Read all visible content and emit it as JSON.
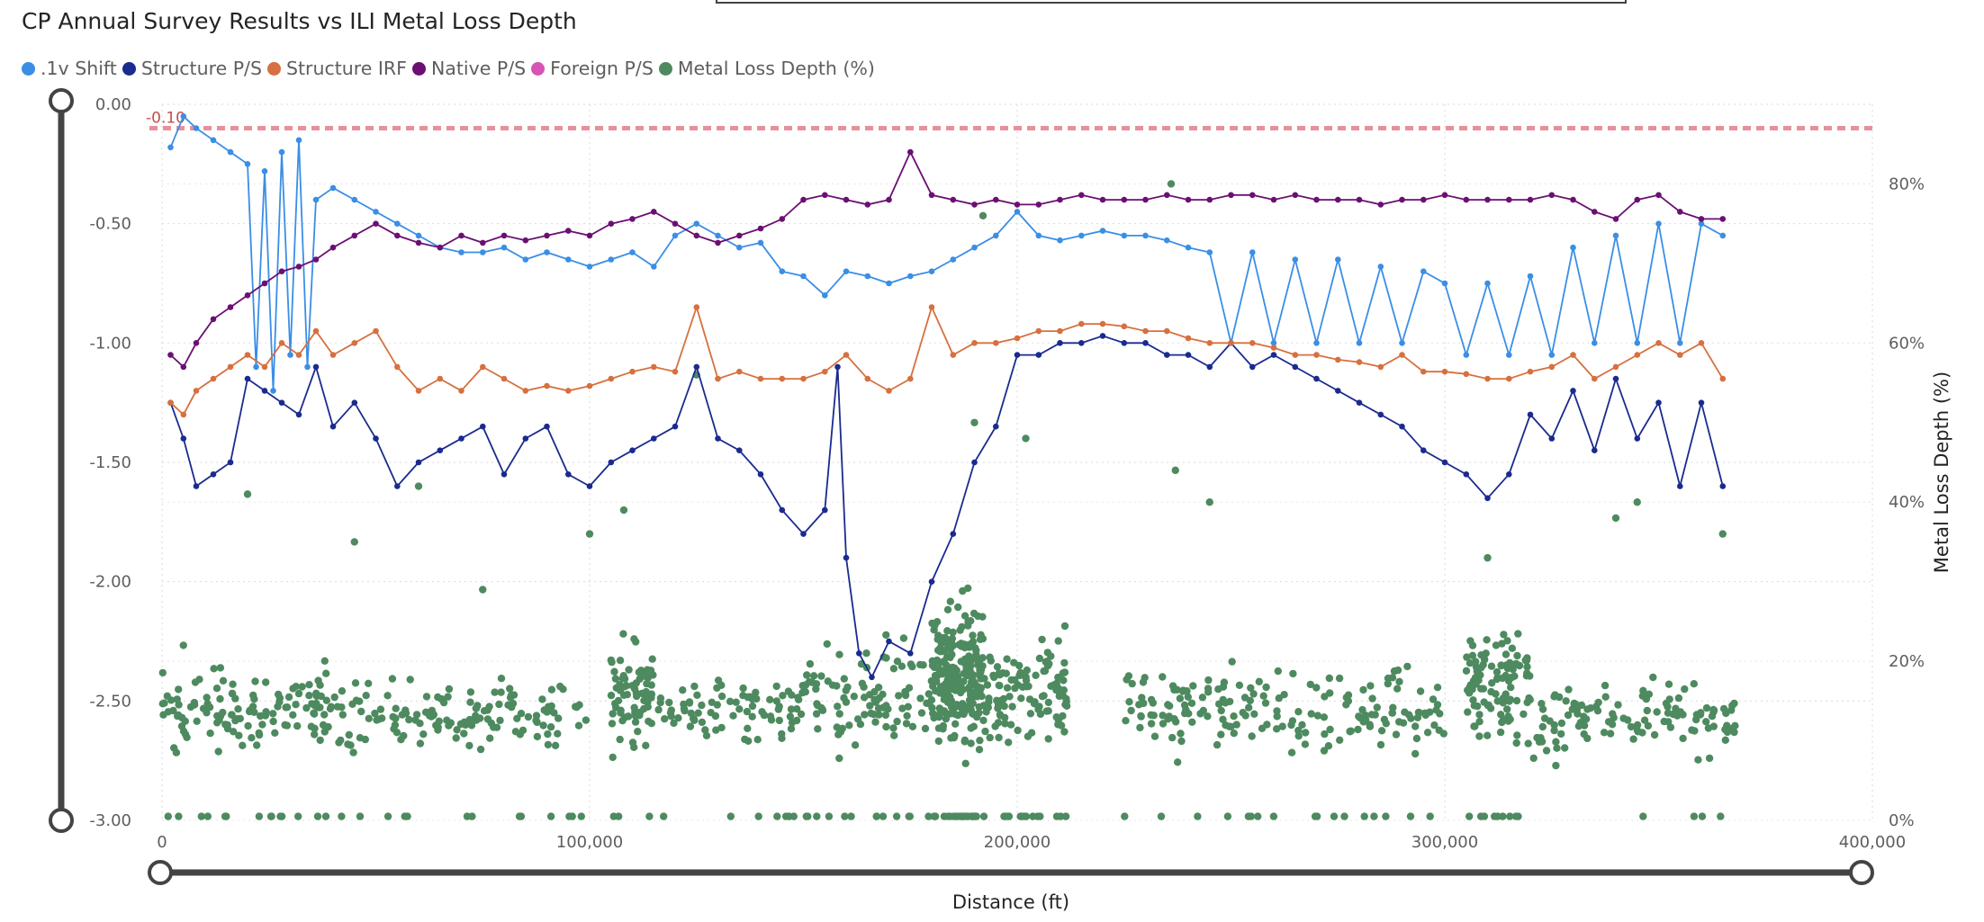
{
  "chart_data": {
    "type": "line",
    "title": "CP Annual Survey Results vs ILI Metal Loss Depth",
    "xlabel": "Distance (ft)",
    "ylabel": "",
    "y2label": "Metal Loss Depth (%)",
    "xlim": [
      0,
      400000
    ],
    "ylim": [
      -3.0,
      0.0
    ],
    "y2lim": [
      0,
      90
    ],
    "x_ticks": [
      "0",
      "100,000",
      "200,000",
      "300,000",
      "400,000"
    ],
    "y_ticks": [
      "0.00",
      "-0.50",
      "-1.00",
      "-1.50",
      "-2.00",
      "-2.50",
      "-3.00"
    ],
    "y2_ticks": [
      "0%",
      "20%",
      "40%",
      "60%",
      "80%"
    ],
    "reference_line": {
      "value": -0.1,
      "label": "-0.10",
      "color": "#e8909a"
    },
    "legend": [
      {
        "name": ".1v Shift",
        "color": "#3a8ee6"
      },
      {
        "name": "Structure P/S",
        "color": "#1a2a8f"
      },
      {
        "name": "Structure IRF",
        "color": "#d6703f"
      },
      {
        "name": "Native P/S",
        "color": "#6b0f73"
      },
      {
        "name": "Foreign P/S",
        "color": "#d654b4"
      },
      {
        "name": "Metal Loss Depth (%)",
        "color": "#4e8a5f"
      }
    ],
    "series": [
      {
        "name": ".1v Shift",
        "axis": "y",
        "color": "#3a8ee6",
        "x": [
          2000,
          5000,
          8000,
          12000,
          16000,
          20000,
          22000,
          24000,
          26000,
          28000,
          30000,
          32000,
          34000,
          36000,
          40000,
          45000,
          50000,
          55000,
          60000,
          65000,
          70000,
          75000,
          80000,
          85000,
          90000,
          95000,
          100000,
          105000,
          110000,
          115000,
          120000,
          125000,
          130000,
          135000,
          140000,
          145000,
          150000,
          155000,
          160000,
          165000,
          170000,
          175000,
          180000,
          185000,
          190000,
          195000,
          200000,
          205000,
          210000,
          215000,
          220000,
          225000,
          230000,
          235000,
          240000,
          245000,
          250000,
          255000,
          260000,
          265000,
          270000,
          275000,
          280000,
          285000,
          290000,
          295000,
          300000,
          305000,
          310000,
          315000,
          320000,
          325000,
          330000,
          335000,
          340000,
          345000,
          350000,
          355000,
          360000,
          365000
        ],
        "y": [
          -0.18,
          -0.05,
          -0.1,
          -0.15,
          -0.2,
          -0.25,
          -1.1,
          -0.28,
          -1.2,
          -0.2,
          -1.05,
          -0.15,
          -1.1,
          -0.4,
          -0.35,
          -0.4,
          -0.45,
          -0.5,
          -0.55,
          -0.6,
          -0.62,
          -0.62,
          -0.6,
          -0.65,
          -0.62,
          -0.65,
          -0.68,
          -0.65,
          -0.62,
          -0.68,
          -0.55,
          -0.5,
          -0.55,
          -0.6,
          -0.58,
          -0.7,
          -0.72,
          -0.8,
          -0.7,
          -0.72,
          -0.75,
          -0.72,
          -0.7,
          -0.65,
          -0.6,
          -0.55,
          -0.45,
          -0.55,
          -0.57,
          -0.55,
          -0.53,
          -0.55,
          -0.55,
          -0.57,
          -0.6,
          -0.62,
          -1.0,
          -0.62,
          -1.0,
          -0.65,
          -1.0,
          -0.65,
          -1.0,
          -0.68,
          -1.0,
          -0.7,
          -0.75,
          -1.05,
          -0.75,
          -1.05,
          -0.72,
          -1.05,
          -0.6,
          -1.0,
          -0.55,
          -1.0,
          -0.5,
          -1.0,
          -0.5,
          -0.55
        ]
      },
      {
        "name": "Structure P/S",
        "axis": "y",
        "color": "#1a2a8f",
        "x": [
          2000,
          5000,
          8000,
          12000,
          16000,
          20000,
          24000,
          28000,
          32000,
          36000,
          40000,
          45000,
          50000,
          55000,
          60000,
          65000,
          70000,
          75000,
          80000,
          85000,
          90000,
          95000,
          100000,
          105000,
          110000,
          115000,
          120000,
          125000,
          130000,
          135000,
          140000,
          145000,
          150000,
          155000,
          158000,
          160000,
          163000,
          166000,
          170000,
          175000,
          180000,
          185000,
          190000,
          195000,
          200000,
          205000,
          210000,
          215000,
          220000,
          225000,
          230000,
          235000,
          240000,
          245000,
          250000,
          255000,
          260000,
          265000,
          270000,
          275000,
          280000,
          285000,
          290000,
          295000,
          300000,
          305000,
          310000,
          315000,
          320000,
          325000,
          330000,
          335000,
          340000,
          345000,
          350000,
          355000,
          360000,
          365000
        ],
        "y": [
          -1.25,
          -1.4,
          -1.6,
          -1.55,
          -1.5,
          -1.15,
          -1.2,
          -1.25,
          -1.3,
          -1.1,
          -1.35,
          -1.25,
          -1.4,
          -1.6,
          -1.5,
          -1.45,
          -1.4,
          -1.35,
          -1.55,
          -1.4,
          -1.35,
          -1.55,
          -1.6,
          -1.5,
          -1.45,
          -1.4,
          -1.35,
          -1.1,
          -1.4,
          -1.45,
          -1.55,
          -1.7,
          -1.8,
          -1.7,
          -1.1,
          -1.9,
          -2.3,
          -2.4,
          -2.25,
          -2.3,
          -2.0,
          -1.8,
          -1.5,
          -1.35,
          -1.05,
          -1.05,
          -1.0,
          -1.0,
          -0.97,
          -1.0,
          -1.0,
          -1.05,
          -1.05,
          -1.1,
          -1.0,
          -1.1,
          -1.05,
          -1.1,
          -1.15,
          -1.2,
          -1.25,
          -1.3,
          -1.35,
          -1.45,
          -1.5,
          -1.55,
          -1.65,
          -1.55,
          -1.3,
          -1.4,
          -1.2,
          -1.45,
          -1.15,
          -1.4,
          -1.25,
          -1.6,
          -1.25,
          -1.6
        ]
      },
      {
        "name": "Structure IRF",
        "axis": "y",
        "color": "#d6703f",
        "x": [
          2000,
          5000,
          8000,
          12000,
          16000,
          20000,
          24000,
          28000,
          32000,
          36000,
          40000,
          45000,
          50000,
          55000,
          60000,
          65000,
          70000,
          75000,
          80000,
          85000,
          90000,
          95000,
          100000,
          105000,
          110000,
          115000,
          120000,
          125000,
          130000,
          135000,
          140000,
          145000,
          150000,
          155000,
          160000,
          165000,
          170000,
          175000,
          180000,
          185000,
          190000,
          195000,
          200000,
          205000,
          210000,
          215000,
          220000,
          225000,
          230000,
          235000,
          240000,
          245000,
          250000,
          255000,
          260000,
          265000,
          270000,
          275000,
          280000,
          285000,
          290000,
          295000,
          300000,
          305000,
          310000,
          315000,
          320000,
          325000,
          330000,
          335000,
          340000,
          345000,
          350000,
          355000,
          360000,
          365000
        ],
        "y": [
          -1.25,
          -1.3,
          -1.2,
          -1.15,
          -1.1,
          -1.05,
          -1.1,
          -1.0,
          -1.05,
          -0.95,
          -1.05,
          -1.0,
          -0.95,
          -1.1,
          -1.2,
          -1.15,
          -1.2,
          -1.1,
          -1.15,
          -1.2,
          -1.18,
          -1.2,
          -1.18,
          -1.15,
          -1.12,
          -1.1,
          -1.12,
          -0.85,
          -1.15,
          -1.12,
          -1.15,
          -1.15,
          -1.15,
          -1.12,
          -1.05,
          -1.15,
          -1.2,
          -1.15,
          -0.85,
          -1.05,
          -1.0,
          -1.0,
          -0.98,
          -0.95,
          -0.95,
          -0.92,
          -0.92,
          -0.93,
          -0.95,
          -0.95,
          -0.98,
          -1.0,
          -1.0,
          -1.0,
          -1.02,
          -1.05,
          -1.05,
          -1.07,
          -1.08,
          -1.1,
          -1.05,
          -1.12,
          -1.12,
          -1.13,
          -1.15,
          -1.15,
          -1.12,
          -1.1,
          -1.05,
          -1.15,
          -1.1,
          -1.05,
          -1.0,
          -1.05,
          -1.0,
          -1.15
        ]
      },
      {
        "name": "Native P/S",
        "axis": "y",
        "color": "#6b0f73",
        "x": [
          2000,
          5000,
          8000,
          12000,
          16000,
          20000,
          24000,
          28000,
          32000,
          36000,
          40000,
          45000,
          50000,
          55000,
          60000,
          65000,
          70000,
          75000,
          80000,
          85000,
          90000,
          95000,
          100000,
          105000,
          110000,
          115000,
          120000,
          125000,
          130000,
          135000,
          140000,
          145000,
          150000,
          155000,
          160000,
          165000,
          170000,
          175000,
          180000,
          185000,
          190000,
          195000,
          200000,
          205000,
          210000,
          215000,
          220000,
          225000,
          230000,
          235000,
          240000,
          245000,
          250000,
          255000,
          260000,
          265000,
          270000,
          275000,
          280000,
          285000,
          290000,
          295000,
          300000,
          305000,
          310000,
          315000,
          320000,
          325000,
          330000,
          335000,
          340000,
          345000,
          350000,
          355000,
          360000,
          365000
        ],
        "y": [
          -1.05,
          -1.1,
          -1.0,
          -0.9,
          -0.85,
          -0.8,
          -0.75,
          -0.7,
          -0.68,
          -0.65,
          -0.6,
          -0.55,
          -0.5,
          -0.55,
          -0.58,
          -0.6,
          -0.55,
          -0.58,
          -0.55,
          -0.57,
          -0.55,
          -0.53,
          -0.55,
          -0.5,
          -0.48,
          -0.45,
          -0.5,
          -0.55,
          -0.58,
          -0.55,
          -0.52,
          -0.48,
          -0.4,
          -0.38,
          -0.4,
          -0.42,
          -0.4,
          -0.2,
          -0.38,
          -0.4,
          -0.42,
          -0.4,
          -0.42,
          -0.42,
          -0.4,
          -0.38,
          -0.4,
          -0.4,
          -0.4,
          -0.38,
          -0.4,
          -0.4,
          -0.38,
          -0.38,
          -0.4,
          -0.38,
          -0.4,
          -0.4,
          -0.4,
          -0.42,
          -0.4,
          -0.4,
          -0.38,
          -0.4,
          -0.4,
          -0.4,
          -0.4,
          -0.38,
          -0.4,
          -0.45,
          -0.48,
          -0.4,
          -0.38,
          -0.45,
          -0.48,
          -0.48
        ]
      },
      {
        "name": "Foreign P/S",
        "axis": "y",
        "color": "#d654b4",
        "x": [],
        "y": []
      }
    ],
    "scatter": {
      "name": "Metal Loss Depth (%)",
      "axis": "y2",
      "color": "#4e8a5f",
      "clusters": [
        {
          "x_range": [
            0,
            40000
          ],
          "y_center": 14,
          "spread": 8,
          "count": 140
        },
        {
          "x_range": [
            40000,
            100000
          ],
          "y_center": 13,
          "spread": 7,
          "count": 150
        },
        {
          "x_range": [
            105000,
            115000
          ],
          "y_center": 16,
          "spread": 10,
          "count": 80
        },
        {
          "x_range": [
            115000,
            150000
          ],
          "y_center": 14,
          "spread": 7,
          "count": 90
        },
        {
          "x_range": [
            150000,
            180000
          ],
          "y_center": 15,
          "spread": 10,
          "count": 110
        },
        {
          "x_range": [
            180000,
            192000
          ],
          "y_center": 18,
          "spread": 14,
          "count": 260
        },
        {
          "x_range": [
            192000,
            212000
          ],
          "y_center": 16,
          "spread": 10,
          "count": 130
        },
        {
          "x_range": [
            225000,
            300000
          ],
          "y_center": 14,
          "spread": 8,
          "count": 200
        },
        {
          "x_range": [
            305000,
            320000
          ],
          "y_center": 17,
          "spread": 11,
          "count": 110
        },
        {
          "x_range": [
            320000,
            368000
          ],
          "y_center": 13,
          "spread": 7,
          "count": 120
        }
      ],
      "outliers_x": [
        5000,
        20000,
        45000,
        60000,
        75000,
        100000,
        108000,
        125000,
        190000,
        192000,
        202000,
        236000,
        237000,
        245000,
        310000,
        312000,
        340000,
        345000,
        365000
      ],
      "outliers_y": [
        22,
        41,
        35,
        42,
        29,
        36,
        39,
        56,
        50,
        76,
        48,
        80,
        44,
        40,
        33,
        22,
        38,
        40,
        36
      ]
    }
  },
  "ui": {
    "left_slider_color": "#444444",
    "bottom_slider_color": "#444444"
  }
}
